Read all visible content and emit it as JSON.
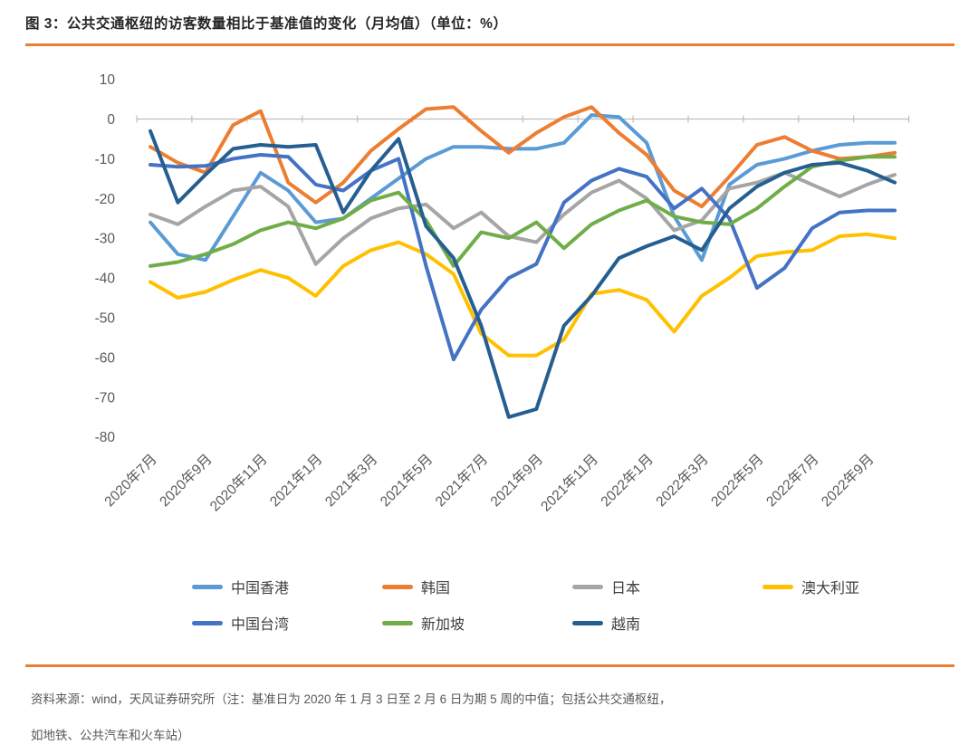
{
  "figure": {
    "title": "图 3：公共交通枢纽的访客数量相比于基准值的变化（月均值）（单位：%）",
    "source_note_line1": "资料来源：wind，天风证券研究所（注：基准日为 2020 年 1 月 3 日至 2 月 6 日为期 5 周的中值；包括公共交通枢纽，",
    "source_note_line2": "如地铁、公共汽车和火车站）",
    "accent_color": "#ED7D31"
  },
  "chart_data": {
    "type": "line",
    "title": "公共交通枢纽的访客数量相比于基准值的变化（月均值）",
    "unit": "%",
    "grid": "off",
    "legend_position": "bottom",
    "y_axis": {
      "min": -80,
      "max": 10,
      "step": 10,
      "tick_labels": [
        "10",
        "0",
        "-10",
        "-20",
        "-30",
        "-40",
        "-50",
        "-60",
        "-70",
        "-80"
      ]
    },
    "x_tick_labels": [
      "2020年7月",
      "2020年9月",
      "2020年11月",
      "2021年1月",
      "2021年3月",
      "2021年5月",
      "2021年7月",
      "2021年9月",
      "2021年11月",
      "2022年1月",
      "2022年3月",
      "2022年5月",
      "2022年7月",
      "2022年9月"
    ],
    "points_per_series": 28,
    "x_label_every_n_points": 2,
    "series": [
      {
        "key": "hong-kong",
        "name": "中国香港",
        "color": "#5B9BD5",
        "values": [
          -26,
          -34,
          -35.5,
          -24.5,
          -13.5,
          -18,
          -26,
          -25,
          -20,
          -15,
          -10,
          -7,
          -7,
          -7.5,
          -7.5,
          -6,
          1,
          0.5,
          -6,
          -24.5,
          -35.5,
          -16.5,
          -11.5,
          -10,
          -8,
          -6.5,
          -6,
          -6
        ]
      },
      {
        "key": "south-korea",
        "name": "韩国",
        "color": "#ED7D31",
        "values": [
          -7,
          -11,
          -13.5,
          -1.5,
          2,
          -16,
          -21,
          -16,
          -8,
          -2.5,
          2.5,
          3,
          -3,
          -8.5,
          -3.5,
          0.5,
          3,
          -3.5,
          -9,
          -18,
          -22,
          -14.5,
          -6.5,
          -4.5,
          -8,
          -10,
          -9.5,
          -8.5
        ]
      },
      {
        "key": "japan",
        "name": "日本",
        "color": "#A5A5A5",
        "values": [
          -24,
          -26.5,
          -22,
          -18,
          -17,
          -22,
          -36.5,
          -30,
          -25,
          -22.5,
          -21.5,
          -27.5,
          -23.5,
          -29.5,
          -31,
          -24,
          -18.5,
          -15.5,
          -20,
          -28,
          -25.5,
          -17.5,
          -16,
          -13.5,
          -16.5,
          -19.5,
          -16.5,
          -14
        ]
      },
      {
        "key": "australia",
        "name": "澳大利亚",
        "color": "#FFC000",
        "values": [
          -41,
          -45,
          -43.5,
          -40.5,
          -38,
          -40,
          -44.5,
          -37,
          -33,
          -31,
          -34,
          -39,
          -54,
          -59.5,
          -59.5,
          -55.5,
          -44,
          -43,
          -45.5,
          -53.5,
          -44.5,
          -40,
          -34.5,
          -33.5,
          -33,
          -29.5,
          -29,
          -30
        ]
      },
      {
        "key": "taiwan",
        "name": "中国台湾",
        "color": "#4472C4",
        "values": [
          -11.5,
          -12,
          -11.8,
          -10,
          -9,
          -9.5,
          -16.5,
          -18,
          -13,
          -10,
          -37,
          -60.5,
          -48,
          -40,
          -36.5,
          -21,
          -15.5,
          -12.5,
          -14.5,
          -22.5,
          -17.5,
          -25,
          -42.5,
          -37.5,
          -27.5,
          -23.5,
          -23,
          -23
        ]
      },
      {
        "key": "singapore",
        "name": "新加坡",
        "color": "#70AD47",
        "values": [
          -37,
          -36,
          -34,
          -31.5,
          -28,
          -26,
          -27.5,
          -25,
          -20.5,
          -18.5,
          -25.5,
          -37,
          -28.5,
          -30,
          -26,
          -32.5,
          -26.5,
          -23,
          -20.5,
          -24.5,
          -26,
          -26.5,
          -22.5,
          -17,
          -12,
          -10.5,
          -9.5,
          -9.5
        ]
      },
      {
        "key": "vietnam",
        "name": "越南",
        "color": "#255E91",
        "values": [
          -3,
          -21,
          -14,
          -7.5,
          -6.5,
          -7,
          -6.5,
          -23.5,
          -13,
          -5,
          -27,
          -35,
          -52,
          -75,
          -73,
          -52,
          -44.5,
          -35,
          -32,
          -29.5,
          -33,
          -22.5,
          -17,
          -13.5,
          -11.5,
          -11,
          -13,
          -16
        ]
      }
    ]
  }
}
